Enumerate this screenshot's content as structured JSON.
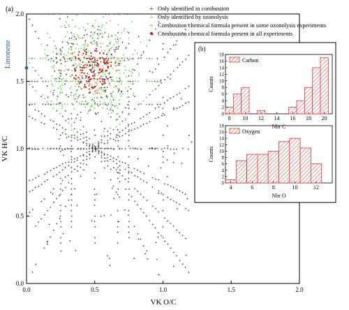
{
  "panel_a_label": "(a)",
  "panel_b_label": "(b)",
  "chart_data": [
    {
      "type": "scatter",
      "title": "",
      "xlabel": "VK O/C",
      "ylabel": "VK H/C",
      "xlim": [
        0,
        2
      ],
      "ylim": [
        0,
        2
      ],
      "x_ticks": [
        "0.0",
        "0.5",
        "1.0",
        "1.5",
        "2.0"
      ],
      "y_ticks": [
        "0.0",
        "0.5",
        "1.0",
        "1.5",
        "2.0"
      ],
      "legend_position": "top-right",
      "series": [
        {
          "name": "Only identified in combustion",
          "marker": "+",
          "color": "#333333"
        },
        {
          "name": "Only identified by ozonolysis",
          "marker": "+",
          "color": "#e8954a"
        },
        {
          "name": "Combustion chemical formula present in some ozonolysis experiments",
          "marker": "+",
          "color": "#44cc33"
        },
        {
          "name": "Combustion chemical formula present in all experiments",
          "marker": "dot",
          "color": "#dd1111"
        }
      ],
      "annotation": {
        "label": "Limonene",
        "x": 0.0,
        "y": 1.6,
        "color": "#1f5fc8"
      }
    },
    {
      "type": "bar",
      "legend": "Carbon",
      "xlabel": "Nbr C",
      "ylabel": "Counts",
      "color": "#e53935",
      "categories": [
        8,
        9,
        10,
        11,
        12,
        13,
        14,
        15,
        16,
        17,
        18,
        19,
        20
      ],
      "values": [
        2,
        6,
        8,
        0,
        1,
        0,
        0,
        0,
        2,
        4,
        8,
        14,
        17
      ],
      "xlim": [
        7.5,
        21
      ],
      "ylim": [
        0,
        18
      ],
      "x_ticks": [
        "8",
        "10",
        "12",
        "14",
        "16",
        "18",
        "20"
      ],
      "y_ticks": [
        "0",
        "2",
        "4",
        "6",
        "8",
        "10",
        "12",
        "14",
        "16",
        "18"
      ]
    },
    {
      "type": "bar",
      "legend": "Oxygen",
      "xlabel": "Nbr O",
      "ylabel": "Counts",
      "color": "#e53935",
      "categories": [
        4,
        5,
        6,
        7,
        8,
        9,
        10,
        11,
        12
      ],
      "values": [
        1,
        7,
        9,
        9,
        10,
        13,
        14,
        11,
        6
      ],
      "xlim": [
        3.5,
        13.5
      ],
      "ylim": [
        0,
        18
      ],
      "x_ticks": [
        "4",
        "6",
        "8",
        "10",
        "12"
      ],
      "y_ticks": [
        "0",
        "2",
        "4",
        "6",
        "8",
        "10",
        "12",
        "14",
        "16",
        "18"
      ]
    }
  ]
}
